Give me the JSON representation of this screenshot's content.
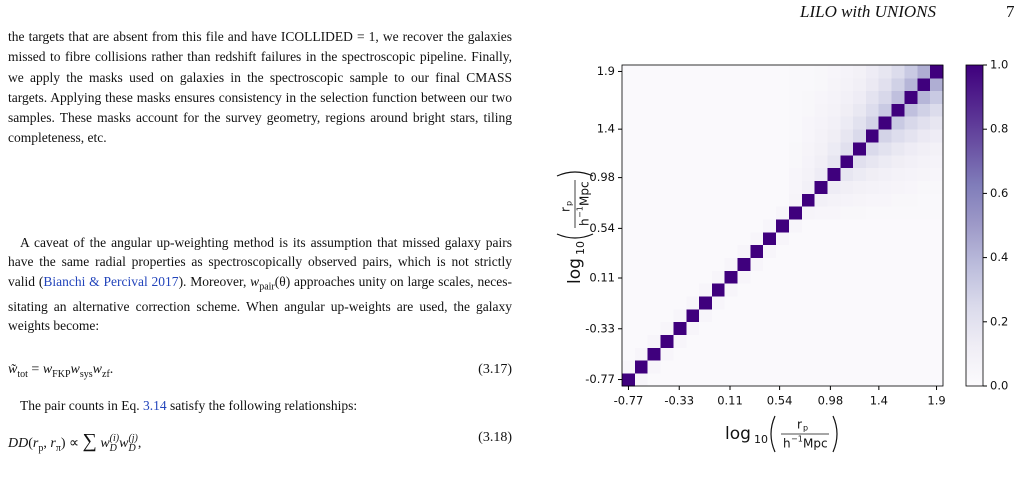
{
  "header": {
    "running_title": "LILO with UNIONS",
    "page_number": "7"
  },
  "body": {
    "paragraph_1": "the targets that are absent from this file and have ICOLLIDED = 1, we recover the galaxies missed to fibre collisions rather than redshift failures in the spectroscopic pipeline. Finally, we apply the masks used on galaxies in the spectroscopic sample to our final CMASS targets. Applying these masks ensures consistency in the selection function between our two samples. These masks account for the survey geometry, regions around bright stars, tiling completeness, etc.",
    "paragraph_2": {
      "text_1": "A caveat of the angular up-weighting method is its assumption that missed galaxy pairs have the same radial properties as spectroscop­ically observed pairs, which is not strictly valid (",
      "citation": "Bianchi & Percival 2017",
      "text_2": "). Moreover, ",
      "symbol": "w",
      "symbol_sub": "pair",
      "symbol_arg": "(θ)",
      "text_3": " approaches unity on large scales, neces­sitating an alternative correction scheme. When angular up-weights are used, the galaxy weights become:"
    },
    "equation_1": {
      "parts": [
        "w̃",
        "tot",
        " = ",
        "w",
        "FKP",
        "w",
        "sys",
        "w",
        "zf",
        "."
      ],
      "number": "(3.17)"
    },
    "paragraph_3": {
      "text_1": "The pair counts in Eq. ",
      "reference": "3.14",
      "text_2": " satisfy the following relationships:"
    },
    "equation_2": {
      "parts": [
        "DD",
        "(",
        "r",
        "p",
        ", ",
        "r",
        "π",
        ") ∝ ",
        "∑",
        "w",
        "(i)",
        "D",
        "w",
        "(j)",
        "D",
        ","
      ],
      "number": "(3.18)"
    }
  },
  "chart_data": {
    "type": "heatmap",
    "bins": [
      -0.826,
      -0.714,
      -0.603,
      -0.492,
      -0.381,
      -0.269,
      -0.158,
      -0.047,
      0.064,
      0.176,
      0.287,
      0.398,
      0.509,
      0.621,
      0.732,
      0.843,
      0.954,
      1.066,
      1.177,
      1.288,
      1.399,
      1.511,
      1.622,
      1.733,
      1.844,
      1.956
    ],
    "xlim": [
      -0.826,
      1.956
    ],
    "ylim": [
      -0.826,
      1.956
    ],
    "xticks": [
      -0.77,
      -0.33,
      0.11,
      0.54,
      0.98,
      1.4,
      1.9
    ],
    "yticks": [
      -0.77,
      -0.33,
      0.11,
      0.54,
      0.98,
      1.4,
      1.9
    ],
    "x_label": {
      "func": "log",
      "base": "10",
      "num": "r",
      "num_sub": "p",
      "den": "h",
      "den_sup": "−1",
      "den_unit": "Mpc"
    },
    "y_label": {
      "func": "log",
      "base": "10",
      "num": "r",
      "num_sub": "p",
      "den": "h",
      "den_sup": "−1",
      "den_unit": "Mpc"
    },
    "colormap": {
      "colors": [
        "#fcfbfd",
        "#efedf5",
        "#dadaeb",
        "#bcbddc",
        "#9e9ac8",
        "#807dba",
        "#6a51a3",
        "#54278f",
        "#3f007d"
      ],
      "clim": [
        0,
        1
      ],
      "ticks": [
        {
          "value": 0,
          "label": "0.0"
        },
        0.2,
        0.4,
        0.6,
        0.8,
        {
          "value": 1,
          "label": "1.0"
        }
      ]
    },
    "z": [
      [
        1,
        0.05,
        0.02,
        0.02,
        0.02,
        0.02,
        0.02,
        0.02,
        0.02,
        0.02,
        0.02,
        0.02,
        0.02,
        0.02,
        0.02,
        0.02,
        0.02,
        0.02,
        0.02,
        0.02,
        0.02,
        0.02,
        0.02,
        0.02,
        0.02
      ],
      [
        0.05,
        1,
        0.05,
        0.02,
        0.02,
        0.02,
        0.02,
        0.02,
        0.02,
        0.02,
        0.02,
        0.02,
        0.02,
        0.02,
        0.02,
        0.02,
        0.02,
        0.02,
        0.02,
        0.02,
        0.02,
        0.02,
        0.02,
        0.02,
        0.02
      ],
      [
        0.02,
        0.05,
        1,
        0.05,
        0.02,
        0.02,
        0.02,
        0.02,
        0.02,
        0.02,
        0.02,
        0.02,
        0.02,
        0.02,
        0.02,
        0.02,
        0.02,
        0.02,
        0.02,
        0.02,
        0.02,
        0.02,
        0.02,
        0.02,
        0.02
      ],
      [
        0.02,
        0.02,
        0.05,
        1,
        0.05,
        0.02,
        0.02,
        0.02,
        0.02,
        0.02,
        0.02,
        0.02,
        0.02,
        0.02,
        0.02,
        0.02,
        0.02,
        0.02,
        0.02,
        0.02,
        0.02,
        0.02,
        0.02,
        0.02,
        0.02
      ],
      [
        0.02,
        0.02,
        0.02,
        0.05,
        1,
        0.05,
        0.02,
        0.02,
        0.02,
        0.02,
        0.02,
        0.02,
        0.02,
        0.02,
        0.02,
        0.02,
        0.02,
        0.02,
        0.02,
        0.02,
        0.02,
        0.02,
        0.02,
        0.02,
        0.02
      ],
      [
        0.02,
        0.02,
        0.02,
        0.02,
        0.05,
        1,
        0.05,
        0.02,
        0.02,
        0.02,
        0.02,
        0.02,
        0.02,
        0.02,
        0.02,
        0.02,
        0.02,
        0.02,
        0.02,
        0.02,
        0.02,
        0.02,
        0.02,
        0.02,
        0.02
      ],
      [
        0.02,
        0.02,
        0.02,
        0.02,
        0.02,
        0.05,
        1,
        0.05,
        0.02,
        0.02,
        0.02,
        0.02,
        0.02,
        0.02,
        0.02,
        0.02,
        0.02,
        0.02,
        0.02,
        0.02,
        0.02,
        0.02,
        0.02,
        0.02,
        0.02
      ],
      [
        0.02,
        0.02,
        0.02,
        0.02,
        0.02,
        0.02,
        0.05,
        1,
        0.05,
        0.02,
        0.02,
        0.02,
        0.02,
        0.02,
        0.02,
        0.02,
        0.02,
        0.02,
        0.02,
        0.02,
        0.02,
        0.02,
        0.02,
        0.02,
        0.02
      ],
      [
        0.02,
        0.02,
        0.02,
        0.02,
        0.02,
        0.02,
        0.02,
        0.05,
        1,
        0.05,
        0.02,
        0.02,
        0.02,
        0.02,
        0.02,
        0.02,
        0.02,
        0.02,
        0.02,
        0.02,
        0.02,
        0.02,
        0.02,
        0.02,
        0.02
      ],
      [
        0.02,
        0.02,
        0.02,
        0.02,
        0.02,
        0.02,
        0.02,
        0.02,
        0.05,
        1,
        0.05,
        0.02,
        0.02,
        0.02,
        0.02,
        0.02,
        0.02,
        0.02,
        0.02,
        0.02,
        0.02,
        0.02,
        0.02,
        0.02,
        0.02
      ],
      [
        0.02,
        0.02,
        0.02,
        0.02,
        0.02,
        0.02,
        0.02,
        0.02,
        0.02,
        0.05,
        1,
        0.05,
        0.02,
        0.02,
        0.02,
        0.02,
        0.02,
        0.02,
        0.02,
        0.02,
        0.02,
        0.02,
        0.02,
        0.02,
        0.02
      ],
      [
        0.02,
        0.02,
        0.02,
        0.02,
        0.02,
        0.02,
        0.02,
        0.02,
        0.02,
        0.02,
        0.05,
        1,
        0.05,
        0.02,
        0.02,
        0.02,
        0.02,
        0.02,
        0.02,
        0.02,
        0.02,
        0.02,
        0.02,
        0.02,
        0.02
      ],
      [
        0.02,
        0.02,
        0.02,
        0.02,
        0.02,
        0.02,
        0.02,
        0.02,
        0.02,
        0.02,
        0.02,
        0.05,
        1,
        0.05,
        0.02,
        0.02,
        0.02,
        0.02,
        0.02,
        0.02,
        0.02,
        0.02,
        0.02,
        0.02,
        0.02
      ],
      [
        0.02,
        0.02,
        0.02,
        0.02,
        0.02,
        0.02,
        0.02,
        0.02,
        0.02,
        0.02,
        0.02,
        0.02,
        0.05,
        1,
        0.06,
        0.05,
        0.05,
        0.04,
        0.04,
        0.03,
        0.03,
        0.03,
        0.03,
        0.03,
        0.03
      ],
      [
        0.02,
        0.02,
        0.02,
        0.02,
        0.02,
        0.02,
        0.02,
        0.02,
        0.02,
        0.02,
        0.02,
        0.02,
        0.02,
        0.06,
        1,
        0.1,
        0.08,
        0.07,
        0.06,
        0.05,
        0.05,
        0.04,
        0.04,
        0.03,
        0.03
      ],
      [
        0.02,
        0.02,
        0.02,
        0.02,
        0.02,
        0.02,
        0.02,
        0.02,
        0.02,
        0.02,
        0.02,
        0.02,
        0.02,
        0.05,
        0.1,
        1,
        0.13,
        0.11,
        0.09,
        0.08,
        0.07,
        0.06,
        0.05,
        0.04,
        0.04
      ],
      [
        0.02,
        0.02,
        0.02,
        0.02,
        0.02,
        0.02,
        0.02,
        0.02,
        0.02,
        0.02,
        0.02,
        0.02,
        0.02,
        0.05,
        0.08,
        0.13,
        1,
        0.17,
        0.14,
        0.12,
        0.1,
        0.08,
        0.07,
        0.06,
        0.05
      ],
      [
        0.02,
        0.02,
        0.02,
        0.02,
        0.02,
        0.02,
        0.02,
        0.02,
        0.02,
        0.02,
        0.02,
        0.02,
        0.02,
        0.04,
        0.07,
        0.11,
        0.17,
        1,
        0.21,
        0.17,
        0.14,
        0.12,
        0.1,
        0.08,
        0.07
      ],
      [
        0.02,
        0.02,
        0.02,
        0.02,
        0.02,
        0.02,
        0.02,
        0.02,
        0.02,
        0.02,
        0.02,
        0.02,
        0.02,
        0.04,
        0.06,
        0.09,
        0.14,
        0.21,
        1,
        0.25,
        0.2,
        0.16,
        0.13,
        0.11,
        0.09
      ],
      [
        0.02,
        0.02,
        0.02,
        0.02,
        0.02,
        0.02,
        0.02,
        0.02,
        0.02,
        0.02,
        0.02,
        0.02,
        0.02,
        0.03,
        0.05,
        0.08,
        0.12,
        0.17,
        0.25,
        1,
        0.28,
        0.23,
        0.19,
        0.15,
        0.13
      ],
      [
        0.02,
        0.02,
        0.02,
        0.02,
        0.02,
        0.02,
        0.02,
        0.02,
        0.02,
        0.02,
        0.02,
        0.02,
        0.02,
        0.03,
        0.05,
        0.07,
        0.1,
        0.14,
        0.2,
        0.28,
        1,
        0.32,
        0.26,
        0.21,
        0.17
      ],
      [
        0.02,
        0.02,
        0.02,
        0.02,
        0.02,
        0.02,
        0.02,
        0.02,
        0.02,
        0.02,
        0.02,
        0.02,
        0.02,
        0.03,
        0.04,
        0.06,
        0.08,
        0.12,
        0.16,
        0.23,
        0.32,
        1,
        0.36,
        0.29,
        0.24
      ],
      [
        0.02,
        0.02,
        0.02,
        0.02,
        0.02,
        0.02,
        0.02,
        0.02,
        0.02,
        0.02,
        0.02,
        0.02,
        0.02,
        0.03,
        0.04,
        0.05,
        0.07,
        0.1,
        0.13,
        0.19,
        0.26,
        0.36,
        1,
        0.4,
        0.32
      ],
      [
        0.02,
        0.02,
        0.02,
        0.02,
        0.02,
        0.02,
        0.02,
        0.02,
        0.02,
        0.02,
        0.02,
        0.02,
        0.02,
        0.03,
        0.03,
        0.04,
        0.06,
        0.08,
        0.11,
        0.15,
        0.21,
        0.29,
        0.4,
        1,
        0.43
      ],
      [
        0.02,
        0.02,
        0.02,
        0.02,
        0.02,
        0.02,
        0.02,
        0.02,
        0.02,
        0.02,
        0.02,
        0.02,
        0.02,
        0.03,
        0.03,
        0.04,
        0.05,
        0.07,
        0.09,
        0.13,
        0.17,
        0.24,
        0.32,
        0.43,
        1
      ]
    ]
  }
}
